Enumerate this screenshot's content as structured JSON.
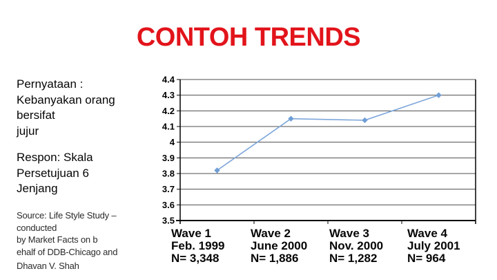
{
  "slide": {
    "title": "CONTOH TRENDS",
    "title_color": "#e2141b"
  },
  "left_panel": {
    "statement": [
      "Pernyataan :",
      "Kebanyakan orang",
      "bersifat",
      "jujur"
    ],
    "response": [
      "Respon: Skala",
      "Persetujuan 6",
      "Jenjang"
    ],
    "source": [
      "Source: Life Style Study –",
      "conducted",
      "by Market Facts on b",
      "ehalf of DDB-Chicago and",
      "Dhavan V. Shah"
    ]
  },
  "chart_data": {
    "type": "line",
    "title": "",
    "xlabel": "",
    "ylabel": "",
    "categories": [
      "Wave 1",
      "Wave 2",
      "Wave 3",
      "Wave 4"
    ],
    "category_labels": [
      {
        "wave": "Wave 1",
        "date": "Feb. 1999",
        "n": "N= 3,348"
      },
      {
        "wave": "Wave 2",
        "date": "June 2000",
        "n": "N= 1,886"
      },
      {
        "wave": "Wave 3",
        "date": "Nov. 2000",
        "n": "N= 1,282"
      },
      {
        "wave": "Wave 4",
        "date": "July 2001",
        "n": "N= 964"
      }
    ],
    "values": [
      3.82,
      4.15,
      4.14,
      4.3
    ],
    "ylim": [
      3.5,
      4.4
    ],
    "ytick_labels": [
      "4.4",
      "4.3",
      "4.2",
      "4.1",
      "4",
      "3.9",
      "3.8",
      "3.7",
      "3.6",
      "3.5"
    ],
    "grid": true,
    "legend": "none",
    "line_color": "#7ea7da",
    "marker_color": "#6f9ed6",
    "grid_color": "#4d4d4d",
    "axis_color": "#000000"
  }
}
